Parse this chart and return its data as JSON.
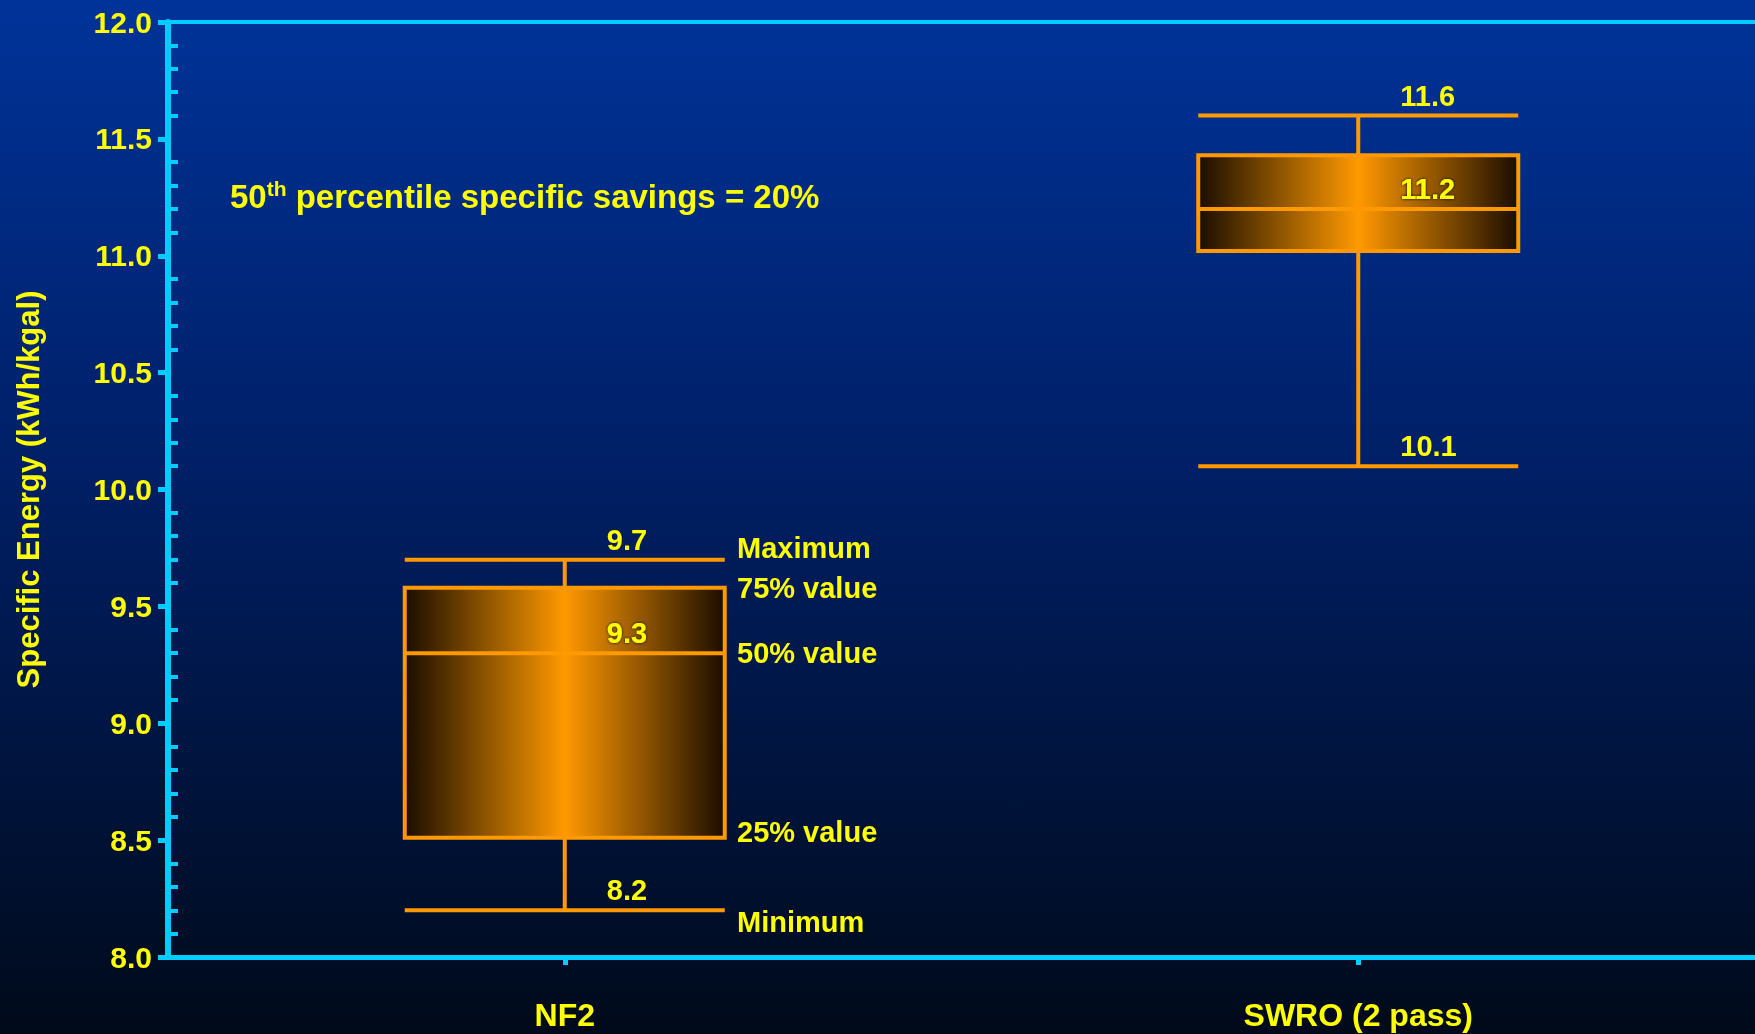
{
  "chart_data": {
    "type": "box",
    "ylabel": "Specific Energy (kWh/kgal)",
    "categories": [
      "NF2",
      "SWRO (2 pass)"
    ],
    "series": [
      {
        "color": "#ff9900",
        "boxes": [
          {
            "low": 8.2,
            "q1": 8.51,
            "median": 9.3,
            "q3": 9.58,
            "high": 9.7
          },
          {
            "low": 10.1,
            "q1": 11.02,
            "median": 11.2,
            "q3": 11.43,
            "high": 11.6
          }
        ]
      }
    ],
    "ylim": [
      8,
      12
    ],
    "yticks": [
      {
        "value": 8,
        "label": "8.0"
      },
      {
        "value": 8.5,
        "label": "8.5"
      },
      {
        "value": 9,
        "label": "9.0"
      },
      {
        "value": 9.5,
        "label": "9.5"
      },
      {
        "value": 10,
        "label": "10.0"
      },
      {
        "value": 10.5,
        "label": "10.5"
      },
      {
        "value": 11,
        "label": "11.0"
      },
      {
        "value": 11.5,
        "label": "11.5"
      },
      {
        "value": 12,
        "label": "12.0"
      },
      {
        "value": 8.1,
        "label": null
      },
      {
        "value": 8.2,
        "label": null
      },
      {
        "value": 8.3,
        "label": null
      },
      {
        "value": 8.4,
        "label": null
      },
      {
        "value": 8.6,
        "label": null
      },
      {
        "value": 8.7,
        "label": null
      },
      {
        "value": 8.8,
        "label": null
      },
      {
        "value": 8.9,
        "label": null
      },
      {
        "value": 9.1,
        "label": null
      },
      {
        "value": 9.2,
        "label": null
      },
      {
        "value": 9.3,
        "label": null
      },
      {
        "value": 9.4,
        "label": null
      },
      {
        "value": 9.6,
        "label": null
      },
      {
        "value": 9.7,
        "label": null
      },
      {
        "value": 9.8,
        "label": null
      },
      {
        "value": 9.9,
        "label": null
      },
      {
        "value": 10.1,
        "label": null
      },
      {
        "value": 10.2,
        "label": null
      },
      {
        "value": 10.3,
        "label": null
      },
      {
        "value": 10.4,
        "label": null
      },
      {
        "value": 10.6,
        "label": null
      },
      {
        "value": 10.7,
        "label": null
      },
      {
        "value": 10.8,
        "label": null
      },
      {
        "value": 10.9,
        "label": null
      },
      {
        "value": 11.1,
        "label": null
      },
      {
        "value": 11.2,
        "label": null
      },
      {
        "value": 11.3,
        "label": null
      },
      {
        "value": 11.4,
        "label": null
      },
      {
        "value": 11.6,
        "label": null
      },
      {
        "value": 11.7,
        "label": null
      },
      {
        "value": 11.8,
        "label": null
      },
      {
        "value": 11.9,
        "label": null
      }
    ],
    "grid": false,
    "annotations": [
      "50$^{th}$ percentile specific savings = 20%",
      {
        "text": "9.7",
        "x": "NF2",
        "y": 9.7
      },
      {
        "text": "9.3",
        "x": "NF2",
        "y": 9.3
      },
      {
        "text": "8.2",
        "x": "NF2",
        "y": 8.2
      },
      {
        "text": "11.6",
        "x": "SWRO (2 pass)",
        "y": 11.6
      },
      {
        "text": "11.2",
        "x": "SWRO (2 pass)",
        "y": 11.2
      },
      {
        "text": "10.1",
        "x": "SWRO (2 pass)",
        "y": 10.1
      },
      "Maximum",
      "75% value",
      "50% value",
      "25% value",
      "Minimum"
    ]
  }
}
